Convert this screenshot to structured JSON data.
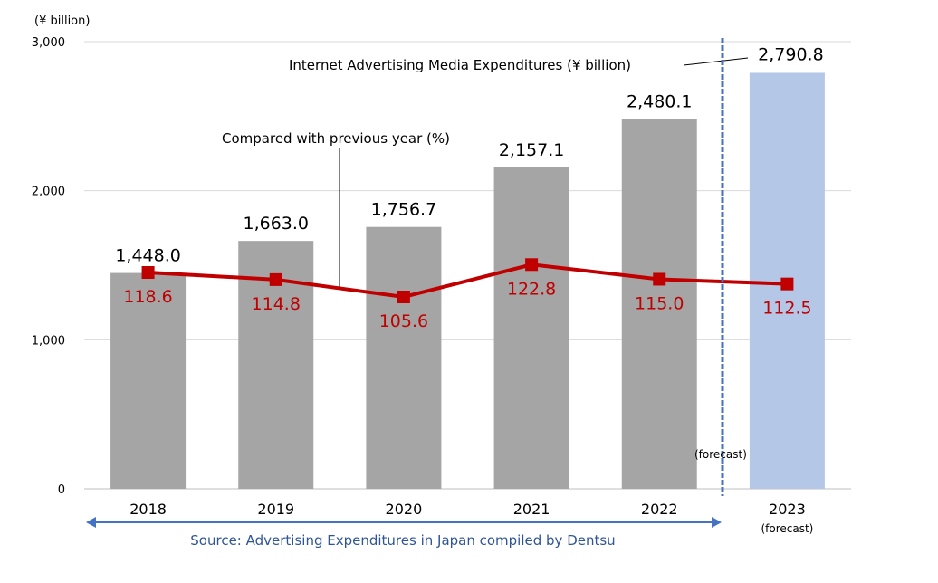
{
  "chart_data": {
    "type": "bar",
    "title": "",
    "ylabel": "(¥ billion)",
    "xlabel": "",
    "ylim": [
      0,
      3000
    ],
    "yticks": [
      "0",
      "1,000",
      "2,000",
      "3,000"
    ],
    "ytick_values": [
      0,
      1000,
      2000,
      3000
    ],
    "grid": true,
    "categories": [
      "2018",
      "2019",
      "2020",
      "2021",
      "2022",
      "2023"
    ],
    "category_sublabels": [
      "",
      "",
      "",
      "",
      "",
      "(forecast)"
    ],
    "series": [
      {
        "name": "Internet Advertising Media Expenditures (¥ billion)",
        "type": "bar",
        "values": [
          1448.0,
          1663.0,
          1756.7,
          2157.1,
          2480.1,
          2790.8
        ],
        "labels": [
          "1,448.0",
          "1,663.0",
          "1,756.7",
          "2,157.1",
          "2,480.1",
          "2,790.8"
        ],
        "forecast": [
          false,
          false,
          false,
          false,
          false,
          true
        ]
      },
      {
        "name": "Compared with previous year (%)",
        "type": "line",
        "values": [
          118.6,
          114.8,
          105.6,
          122.8,
          115.0,
          112.5
        ],
        "labels": [
          "118.6",
          "114.8",
          "105.6",
          "122.8",
          "115.0",
          "112.5"
        ]
      }
    ],
    "annotations": {
      "bar_series_label": "Internet Advertising Media Expenditures (¥ billion)",
      "line_series_label": "Compared with previous year (%)",
      "forecast_label": "(forecast)",
      "source": "Source: Advertising Expenditures in Japan compiled by Dentsu"
    },
    "colors": {
      "bar": "#a5a5a5",
      "forecast_bar": "#b4c7e7",
      "line": "#c00000",
      "divider": "#4472c4",
      "grid": "#d9d9d9",
      "source": "#2f5597"
    }
  }
}
